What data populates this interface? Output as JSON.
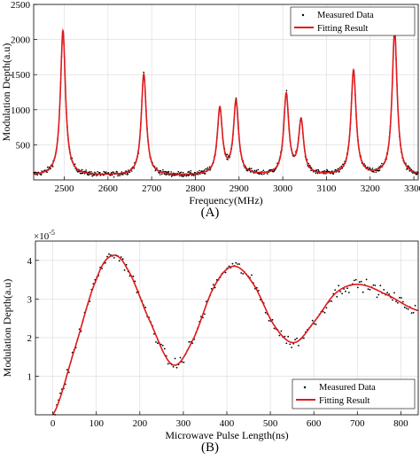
{
  "figure": {
    "panel_labels": [
      "(A)",
      "(B)"
    ]
  },
  "chart_data": [
    {
      "type": "scatter",
      "xlabel": "Frequency(MHz)",
      "ylabel": "Modulation Depth(a.u)",
      "xlim": [
        2430,
        3310
      ],
      "ylim": [
        0,
        2500
      ],
      "x_ticks": [
        2500,
        2600,
        2700,
        2800,
        2900,
        3000,
        3100,
        3200,
        3300
      ],
      "y_ticks": [
        500,
        1000,
        1500,
        2000,
        2500
      ],
      "grid": true,
      "legend": {
        "position": "top-right",
        "entries": [
          "Measured Data",
          "Fitting Result"
        ]
      },
      "series": [
        {
          "name": "Measured Data",
          "style": "points",
          "color": "#000000"
        },
        {
          "name": "Fitting Result",
          "style": "line",
          "color": "#e0191b"
        }
      ],
      "baseline": 60,
      "peaks": [
        {
          "x": 2497,
          "y": 2120
        },
        {
          "x": 2682,
          "y": 1500
        },
        {
          "x": 2856,
          "y": 1000
        },
        {
          "x": 2893,
          "y": 1100
        },
        {
          "x": 3008,
          "y": 1200
        },
        {
          "x": 3042,
          "y": 820
        },
        {
          "x": 3162,
          "y": 1550
        },
        {
          "x": 3256,
          "y": 2110
        }
      ]
    },
    {
      "type": "scatter",
      "xlabel": "Microwave Pulse Length(ns)",
      "ylabel": "Modulation Depth(a.u)",
      "y_multiplier": "×10",
      "y_multiplier_exp": "-5",
      "xlim": [
        -40,
        840
      ],
      "ylim": [
        0,
        4.5
      ],
      "x_ticks": [
        0,
        100,
        200,
        300,
        400,
        500,
        600,
        700,
        800
      ],
      "y_ticks": [
        1,
        2,
        3,
        4
      ],
      "grid": true,
      "legend": {
        "position": "bottom-right",
        "entries": [
          "Measured Data",
          "Fitting Result"
        ]
      },
      "series": [
        {
          "name": "Measured Data",
          "style": "points",
          "color": "#000000"
        },
        {
          "name": "Fitting Result",
          "style": "line",
          "color": "#e0191b"
        }
      ],
      "fit_keypoints": [
        {
          "x": 0,
          "y": 0.0
        },
        {
          "x": 50,
          "y": 1.7
        },
        {
          "x": 100,
          "y": 3.5
        },
        {
          "x": 135,
          "y": 4.12
        },
        {
          "x": 170,
          "y": 3.8
        },
        {
          "x": 220,
          "y": 2.5
        },
        {
          "x": 275,
          "y": 1.3
        },
        {
          "x": 320,
          "y": 1.9
        },
        {
          "x": 370,
          "y": 3.3
        },
        {
          "x": 415,
          "y": 3.85
        },
        {
          "x": 460,
          "y": 3.4
        },
        {
          "x": 510,
          "y": 2.3
        },
        {
          "x": 555,
          "y": 1.87
        },
        {
          "x": 600,
          "y": 2.4
        },
        {
          "x": 650,
          "y": 3.15
        },
        {
          "x": 700,
          "y": 3.38
        },
        {
          "x": 760,
          "y": 3.15
        },
        {
          "x": 840,
          "y": 2.7
        }
      ]
    }
  ]
}
